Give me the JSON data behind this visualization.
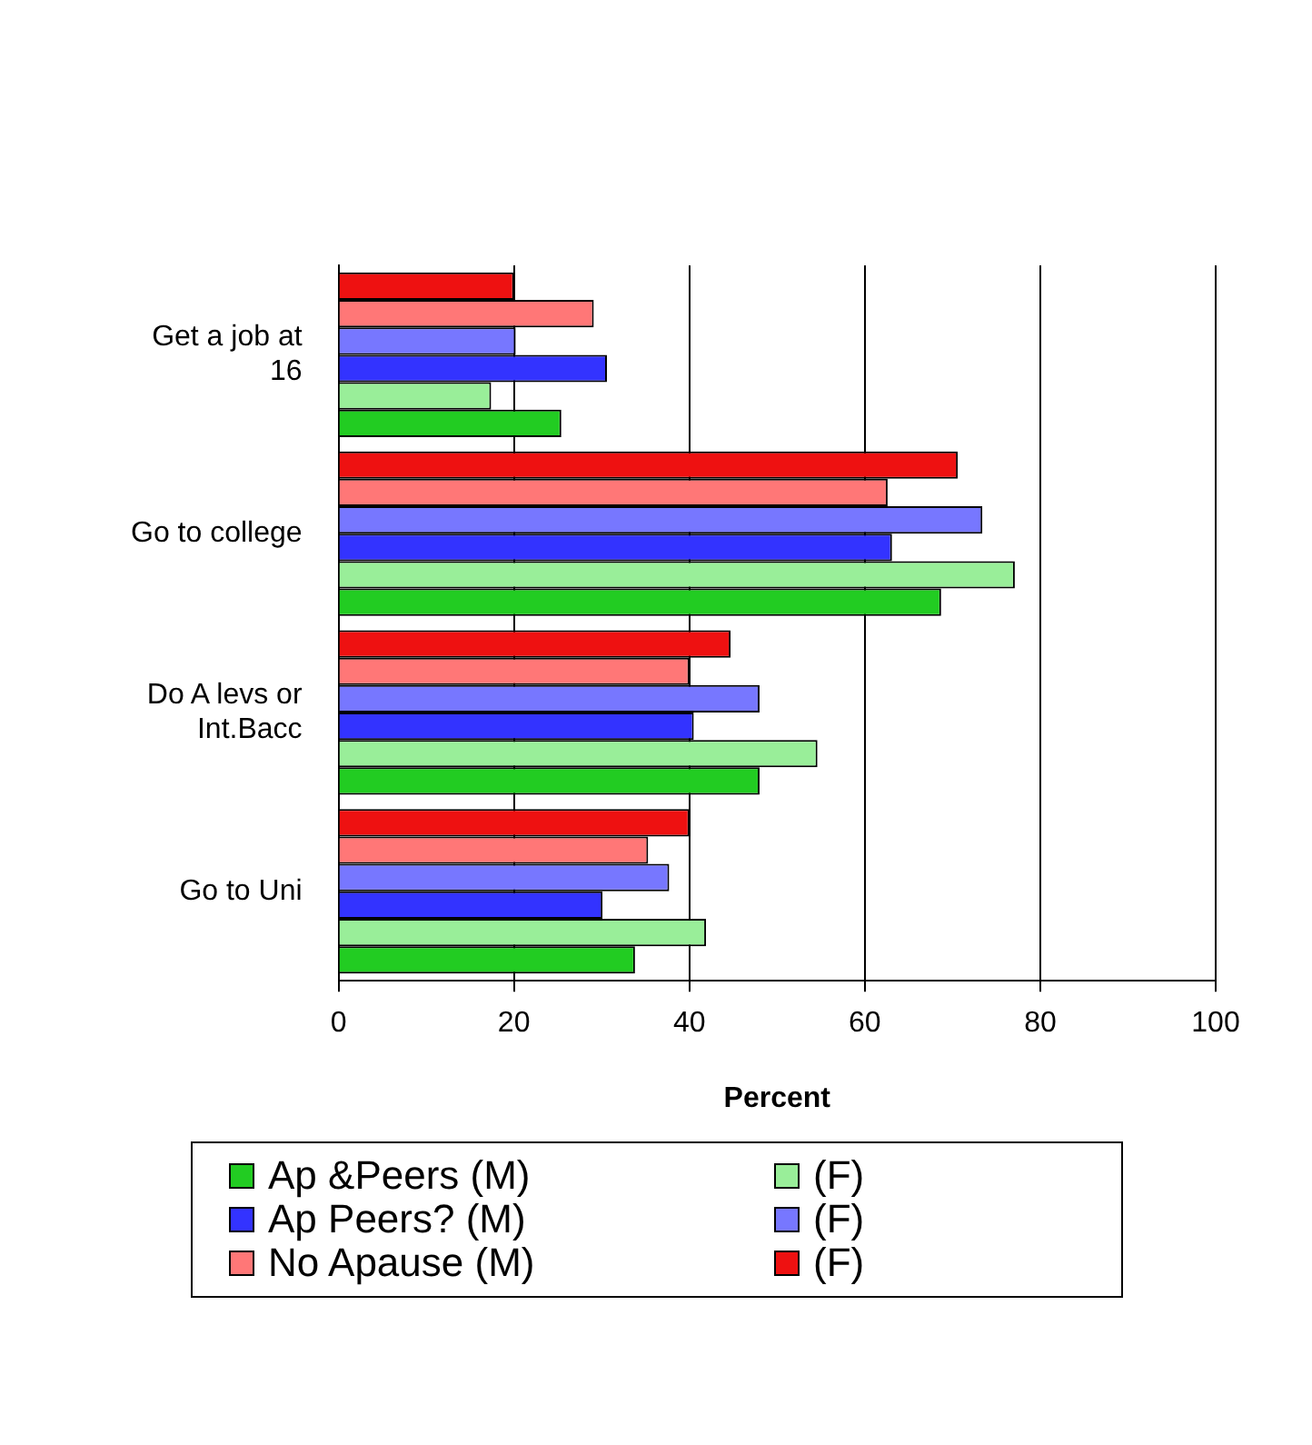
{
  "chart_data": {
    "type": "bar",
    "orientation": "horizontal",
    "xlabel": "Percent",
    "categories": [
      "Get a job at 16",
      "Go to college",
      "Do A levs or Int.Bacc",
      "Go to Uni"
    ],
    "series": [
      {
        "name": "Ap &Peers (M)",
        "color": "#22cc22",
        "values": [
          25.4,
          68.7,
          48,
          33.8
        ]
      },
      {
        "name": "(F)",
        "color": "#99ee99",
        "values": [
          17.4,
          77.1,
          54.6,
          41.9
        ]
      },
      {
        "name": "Ap Peers? (M)",
        "color": "#3333ff",
        "values": [
          30.6,
          63.1,
          40.5,
          30.1
        ]
      },
      {
        "name": "(F)",
        "color": "#7777ff",
        "values": [
          20.2,
          73.4,
          48,
          37.7
        ]
      },
      {
        "name": "No Apause (M)",
        "color": "#ff7777",
        "values": [
          29.1,
          62.6,
          40,
          35.3
        ]
      },
      {
        "name": "(F)",
        "color": "#ee1111",
        "values": [
          20,
          70.6,
          44.7,
          40
        ]
      }
    ],
    "xlim": [
      0,
      100
    ],
    "xticks": [
      0,
      20,
      40,
      60,
      80,
      100
    ],
    "grid": "x",
    "legend": "bottom"
  }
}
